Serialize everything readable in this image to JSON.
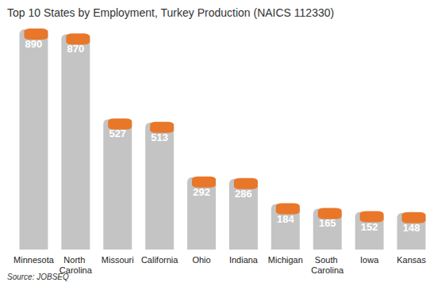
{
  "chart_data": {
    "type": "bar",
    "title": "Top 10 States by Employment, Turkey Production (NAICS 112330)",
    "source": "Source: JOBSEQ",
    "categories": [
      "Minnesota",
      "North Carolina",
      "Missouri",
      "California",
      "Ohio",
      "Indiana",
      "Michigan",
      "South Carolina",
      "Iowa",
      "Kansas"
    ],
    "values": [
      890,
      870,
      527,
      513,
      292,
      286,
      184,
      165,
      152,
      148
    ],
    "color": "#c4c4c4",
    "ylim": [
      0,
      900
    ],
    "grid": false,
    "data_labels": true,
    "tick_labels": "x"
  }
}
